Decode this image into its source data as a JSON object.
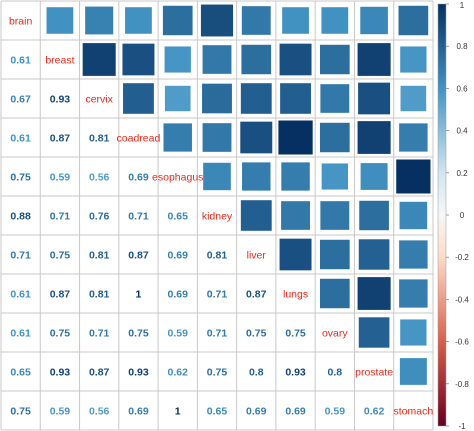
{
  "chart_data": {
    "type": "heatmap",
    "variables": [
      "brain",
      "breast",
      "cervix",
      "coadread",
      "esophagus",
      "kidney",
      "liver",
      "lungs",
      "ovary",
      "prostate",
      "stomach"
    ],
    "lower_triangle_labels": [
      [],
      [
        "0.61"
      ],
      [
        "0.67",
        "0.93"
      ],
      [
        "0.61",
        "0.87",
        "0.81"
      ],
      [
        "0.75",
        "0.59",
        "0.56",
        "0.69"
      ],
      [
        "0.88",
        "0.71",
        "0.76",
        "0.71",
        "0.65"
      ],
      [
        "0.71",
        "0.75",
        "0.81",
        "0.87",
        "0.69",
        "0.81"
      ],
      [
        "0.61",
        "0.87",
        "0.81",
        "1",
        "0.69",
        "0.71",
        "0.87"
      ],
      [
        "0.61",
        "0.75",
        "0.71",
        "0.75",
        "0.59",
        "0.71",
        "0.75",
        "0.75"
      ],
      [
        "0.65",
        "0.93",
        "0.87",
        "0.93",
        "0.62",
        "0.75",
        "0.8",
        "0.93",
        "0.8"
      ],
      [
        "0.75",
        "0.59",
        "0.56",
        "0.69",
        "1",
        "0.65",
        "0.69",
        "0.69",
        "0.59",
        "0.62"
      ]
    ],
    "colorbar": {
      "range": [
        -1,
        1
      ],
      "ticks": [
        "1",
        "0.8",
        "0.6",
        "0.4",
        "0.2",
        "0",
        "-0.2",
        "-0.4",
        "-0.6",
        "-0.8",
        "-1"
      ]
    }
  }
}
